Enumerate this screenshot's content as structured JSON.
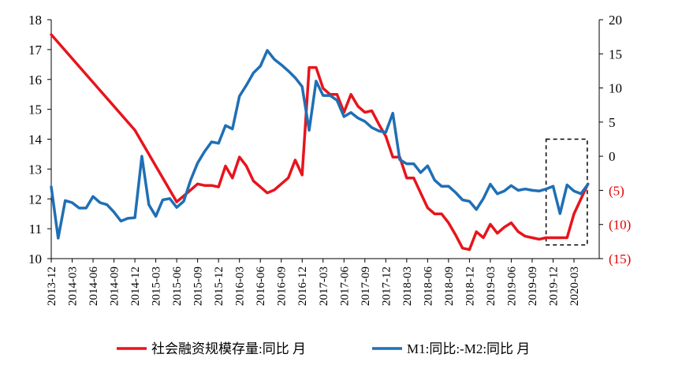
{
  "chart_data": {
    "type": "line",
    "title": "",
    "colors": {
      "series1": "#e8141c",
      "series2": "#1f6fb5"
    },
    "y_left": {
      "min": 10,
      "max": 18,
      "ticks": [
        "10",
        "11",
        "12",
        "13",
        "14",
        "15",
        "16",
        "17",
        "18"
      ]
    },
    "y_right": {
      "min": -15,
      "max": 20,
      "ticks": [
        {
          "value": 20,
          "label": "20"
        },
        {
          "value": 15,
          "label": "15"
        },
        {
          "value": 10,
          "label": "10"
        },
        {
          "value": 5,
          "label": "5"
        },
        {
          "value": 0,
          "label": "0"
        },
        {
          "value": -5,
          "label": "(5)"
        },
        {
          "value": -10,
          "label": "(10)"
        },
        {
          "value": -15,
          "label": "(15)"
        }
      ]
    },
    "x_ticks": [
      "2013-12",
      "2014-03",
      "2014-06",
      "2014-09",
      "2014-12",
      "2015-03",
      "2015-06",
      "2015-09",
      "2015-12",
      "2016-03",
      "2016-06",
      "2016-09",
      "2016-12",
      "2017-03",
      "2017-06",
      "2017-09",
      "2017-12",
      "2018-03",
      "2018-06",
      "2018-09",
      "2018-12",
      "2019-03",
      "2019-06",
      "2019-09",
      "2019-12",
      "2020-03"
    ],
    "annotation": {
      "type": "dashed-box",
      "from": "2019-11",
      "to": "2020-04",
      "y_right_top": 2.5,
      "y_right_bottom": -13
    },
    "series": [
      {
        "name": "社会融资规模存量:同比 月",
        "axis": "left",
        "points": [
          [
            "2013-12",
            17.5
          ],
          [
            "2014-12",
            14.3
          ],
          [
            "2015-03",
            13.1
          ],
          [
            "2015-06",
            11.9
          ],
          [
            "2015-07",
            12.1
          ],
          [
            "2015-08",
            12.3
          ],
          [
            "2015-09",
            12.5
          ],
          [
            "2015-10",
            12.45
          ],
          [
            "2015-11",
            12.45
          ],
          [
            "2015-12",
            12.4
          ],
          [
            "2016-01",
            13.1
          ],
          [
            "2016-02",
            12.7
          ],
          [
            "2016-03",
            13.4
          ],
          [
            "2016-04",
            13.1
          ],
          [
            "2016-05",
            12.6
          ],
          [
            "2016-06",
            12.4
          ],
          [
            "2016-07",
            12.2
          ],
          [
            "2016-08",
            12.3
          ],
          [
            "2016-09",
            12.5
          ],
          [
            "2016-10",
            12.7
          ],
          [
            "2016-11",
            13.3
          ],
          [
            "2016-12",
            12.8
          ],
          [
            "2017-01",
            16.4
          ],
          [
            "2017-02",
            16.4
          ],
          [
            "2017-03",
            15.7
          ],
          [
            "2017-04",
            15.5
          ],
          [
            "2017-05",
            15.5
          ],
          [
            "2017-06",
            14.9
          ],
          [
            "2017-07",
            15.5
          ],
          [
            "2017-08",
            15.1
          ],
          [
            "2017-09",
            14.9
          ],
          [
            "2017-10",
            14.95
          ],
          [
            "2017-11",
            14.5
          ],
          [
            "2017-12",
            14.1
          ],
          [
            "2018-01",
            13.4
          ],
          [
            "2018-02",
            13.4
          ],
          [
            "2018-03",
            12.7
          ],
          [
            "2018-04",
            12.7
          ],
          [
            "2018-05",
            12.2
          ],
          [
            "2018-06",
            11.7
          ],
          [
            "2018-07",
            11.5
          ],
          [
            "2018-08",
            11.5
          ],
          [
            "2018-09",
            11.2
          ],
          [
            "2018-10",
            10.8
          ],
          [
            "2018-11",
            10.35
          ],
          [
            "2018-12",
            10.3
          ],
          [
            "2019-01",
            10.9
          ],
          [
            "2019-02",
            10.7
          ],
          [
            "2019-03",
            11.15
          ],
          [
            "2019-04",
            10.85
          ],
          [
            "2019-05",
            11.05
          ],
          [
            "2019-06",
            11.2
          ],
          [
            "2019-07",
            10.9
          ],
          [
            "2019-08",
            10.75
          ],
          [
            "2019-09",
            10.7
          ],
          [
            "2019-10",
            10.65
          ],
          [
            "2019-11",
            10.7
          ],
          [
            "2019-12",
            10.7
          ],
          [
            "2020-01",
            10.7
          ],
          [
            "2020-02",
            10.7
          ],
          [
            "2020-03",
            11.5
          ],
          [
            "2020-04",
            12.0
          ],
          [
            "2020-05",
            12.5
          ]
        ]
      },
      {
        "name": "M1:同比:-M2:同比 月",
        "axis": "right",
        "points": [
          [
            "2013-12",
            -4.5
          ],
          [
            "2014-01",
            -12.0
          ],
          [
            "2014-02",
            -6.5
          ],
          [
            "2014-03",
            -6.8
          ],
          [
            "2014-04",
            -7.6
          ],
          [
            "2014-05",
            -7.6
          ],
          [
            "2014-06",
            -5.9
          ],
          [
            "2014-07",
            -6.8
          ],
          [
            "2014-08",
            -7.1
          ],
          [
            "2014-09",
            -8.2
          ],
          [
            "2014-10",
            -9.5
          ],
          [
            "2014-11",
            -9.1
          ],
          [
            "2014-12",
            -9.0
          ],
          [
            "2015-01",
            0.0
          ],
          [
            "2015-02",
            -7.1
          ],
          [
            "2015-03",
            -8.8
          ],
          [
            "2015-04",
            -6.4
          ],
          [
            "2015-05",
            -6.2
          ],
          [
            "2015-06",
            -7.5
          ],
          [
            "2015-07",
            -6.6
          ],
          [
            "2015-08",
            -3.5
          ],
          [
            "2015-09",
            -1.0
          ],
          [
            "2015-10",
            0.7
          ],
          [
            "2015-11",
            2.1
          ],
          [
            "2015-12",
            1.9
          ],
          [
            "2016-01",
            4.5
          ],
          [
            "2016-02",
            4.0
          ],
          [
            "2016-03",
            8.8
          ],
          [
            "2016-04",
            10.4
          ],
          [
            "2016-05",
            12.2
          ],
          [
            "2016-06",
            13.2
          ],
          [
            "2016-07",
            15.5
          ],
          [
            "2016-08",
            14.2
          ],
          [
            "2016-09",
            13.4
          ],
          [
            "2016-10",
            12.5
          ],
          [
            "2016-11",
            11.5
          ],
          [
            "2016-12",
            10.2
          ],
          [
            "2017-01",
            3.8
          ],
          [
            "2017-02",
            11.0
          ],
          [
            "2017-03",
            8.9
          ],
          [
            "2017-04",
            8.9
          ],
          [
            "2017-05",
            8.2
          ],
          [
            "2017-06",
            5.8
          ],
          [
            "2017-07",
            6.4
          ],
          [
            "2017-08",
            5.6
          ],
          [
            "2017-09",
            5.1
          ],
          [
            "2017-10",
            4.2
          ],
          [
            "2017-11",
            3.7
          ],
          [
            "2017-12",
            3.5
          ],
          [
            "2018-01",
            6.3
          ],
          [
            "2018-02",
            -0.5
          ],
          [
            "2018-03",
            -1.1
          ],
          [
            "2018-04",
            -1.1
          ],
          [
            "2018-05",
            -2.4
          ],
          [
            "2018-06",
            -1.4
          ],
          [
            "2018-07",
            -3.5
          ],
          [
            "2018-08",
            -4.4
          ],
          [
            "2018-09",
            -4.4
          ],
          [
            "2018-10",
            -5.3
          ],
          [
            "2018-11",
            -6.4
          ],
          [
            "2018-12",
            -6.6
          ],
          [
            "2019-01",
            -7.8
          ],
          [
            "2019-02",
            -6.2
          ],
          [
            "2019-03",
            -4.1
          ],
          [
            "2019-04",
            -5.5
          ],
          [
            "2019-05",
            -5.1
          ],
          [
            "2019-06",
            -4.3
          ],
          [
            "2019-07",
            -5.0
          ],
          [
            "2019-08",
            -4.8
          ],
          [
            "2019-09",
            -5.0
          ],
          [
            "2019-10",
            -5.1
          ],
          [
            "2019-11",
            -4.8
          ],
          [
            "2019-12",
            -4.4
          ],
          [
            "2020-01",
            -8.4
          ],
          [
            "2020-02",
            -4.2
          ],
          [
            "2020-03",
            -5.1
          ],
          [
            "2020-04",
            -5.5
          ],
          [
            "2020-05",
            -4.1
          ]
        ]
      }
    ],
    "legend": {
      "position": "bottom"
    }
  }
}
